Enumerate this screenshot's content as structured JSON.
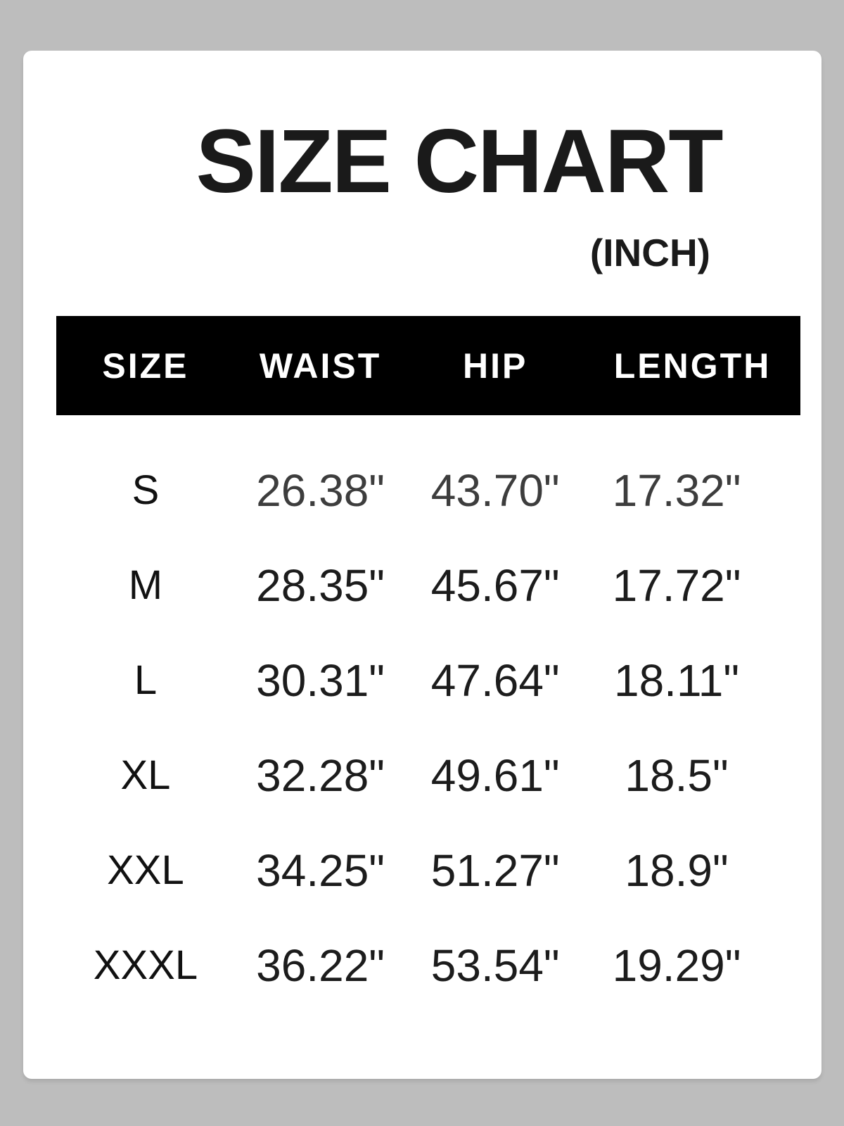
{
  "page": {
    "background_color": "#bdbdbd",
    "card_color": "#ffffff"
  },
  "header": {
    "title": "SIZE CHART",
    "unit_label": "(INCH)"
  },
  "colors": {
    "header_bar_bg": "#000000",
    "header_bar_text": "#ffffff",
    "value_color": "#1c1c1c",
    "row_s_value_color": "#3d3d3d"
  },
  "chart_data": {
    "type": "table",
    "title": "SIZE CHART",
    "unit": "INCH",
    "columns": [
      "SIZE",
      "WAIST",
      "HIP",
      "LENGTH"
    ],
    "rows": [
      [
        "S",
        "26.38\"",
        "43.70\"",
        "17.32\""
      ],
      [
        "M",
        "28.35\"",
        "45.67\"",
        "17.72\""
      ],
      [
        "L",
        "30.31\"",
        "47.64\"",
        "18.11\""
      ],
      [
        "XL",
        "32.28\"",
        "49.61\"",
        "18.5\""
      ],
      [
        "XXL",
        "34.25\"",
        "51.27\"",
        "18.9\""
      ],
      [
        "XXXL",
        "36.22\"",
        "53.54\"",
        "19.29\""
      ]
    ]
  }
}
